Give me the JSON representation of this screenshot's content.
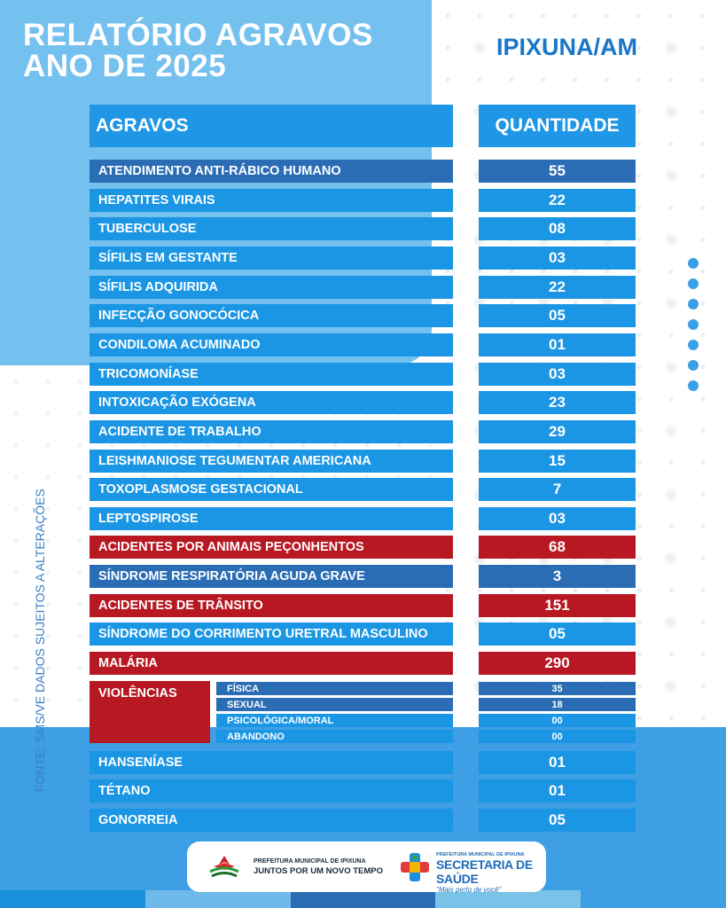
{
  "header": {
    "title_line1": "RELATÓRIO AGRAVOS",
    "title_line2": "ANO DE 2025",
    "city": "IPIXUNA/AM"
  },
  "side_note": "FONTE: SMS/VE DADOS SUJEITOS A ALTERAÇÕES",
  "table": {
    "col_agravos": "AGRAVOS",
    "col_quantidade": "QUANTIDADE",
    "rows": [
      {
        "label": "ATENDIMENTO ANTI-RÁBICO HUMANO",
        "value": "55",
        "style": "dark"
      },
      {
        "label": "HEPATITES VIRAIS",
        "value": "22",
        "style": "light"
      },
      {
        "label": "TUBERCULOSE",
        "value": "08",
        "style": "light"
      },
      {
        "label": "SÍFILIS EM GESTANTE",
        "value": "03",
        "style": "light"
      },
      {
        "label": "SÍFILIS ADQUIRIDA",
        "value": "22",
        "style": "light"
      },
      {
        "label": "INFECÇÃO GONOCÓCICA",
        "value": "05",
        "style": "light"
      },
      {
        "label": "CONDILOMA ACUMINADO",
        "value": "01",
        "style": "light"
      },
      {
        "label": "TRICOMONÍASE",
        "value": "03",
        "style": "light"
      },
      {
        "label": "INTOXICAÇÃO EXÓGENA",
        "value": "23",
        "style": "light"
      },
      {
        "label": "ACIDENTE DE TRABALHO",
        "value": "29",
        "style": "light"
      },
      {
        "label": "LEISHMANIOSE TEGUMENTAR AMERICANA",
        "value": "15",
        "style": "light"
      },
      {
        "label": "TOXOPLASMOSE GESTACIONAL",
        "value": "7",
        "style": "light"
      },
      {
        "label": "LEPTOSPIROSE",
        "value": "03",
        "style": "light"
      },
      {
        "label": "ACIDENTES POR ANIMAIS PEÇONHENTOS",
        "value": "68",
        "style": "red"
      },
      {
        "label": "SÍNDROME RESPIRATÓRIA AGUDA GRAVE",
        "value": "3",
        "style": "dark"
      },
      {
        "label": "ACIDENTES DE TRÂNSITO",
        "value": "151",
        "style": "red"
      },
      {
        "label": "SÍNDROME DO CORRIMENTO URETRAL MASCULINO",
        "value": "05",
        "style": "light"
      },
      {
        "label": "MALÁRIA",
        "value": "290",
        "style": "red"
      }
    ],
    "violencias": {
      "label": "VIOLÊNCIAS",
      "items": [
        {
          "label": "FÍSICA",
          "value": "35"
        },
        {
          "label": "SEXUAL",
          "value": "18"
        },
        {
          "label": "PSICOLÓGICA/MORAL",
          "value": "00"
        },
        {
          "label": "ABANDONO",
          "value": "00"
        }
      ]
    },
    "rows_after": [
      {
        "label": "HANSENÍASE",
        "value": "01",
        "style": "light"
      },
      {
        "label": "TÉTANO",
        "value": "01",
        "style": "light"
      },
      {
        "label": "GONORREIA",
        "value": "05",
        "style": "light"
      }
    ]
  },
  "footer": {
    "logo1_line1": "PREFEITURA MUNICIPAL DE IPIXUNA",
    "logo1_line2": "JUNTOS POR UM NOVO TEMPO",
    "logo2_line1": "PREFEITURA MUNICIPAL DE IPIXUNA",
    "logo2_line2": "SECRETARIA DE SAÚDE",
    "logo2_line3": "\"Mais perto de você\""
  },
  "colors": {
    "light": "#1a96e5",
    "dark": "#2a6db5",
    "red": "#b81822"
  }
}
